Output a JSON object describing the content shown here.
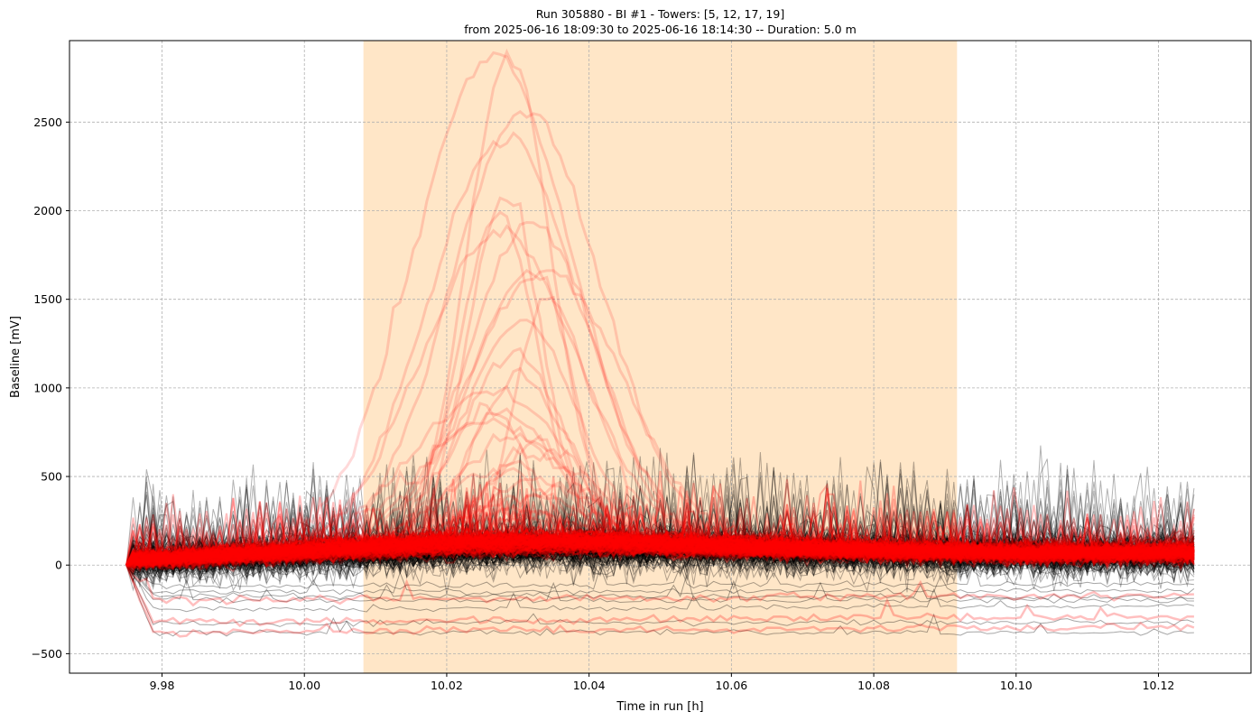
{
  "chart_data": {
    "type": "line",
    "title_line1": "Run 305880  -  BI #1  -  Towers: [5, 12, 17, 19]",
    "title_line2": "from  2025-06-16 18:09:30  to  2025-06-16 18:14:30 -- Duration: 5.0 m",
    "xlabel": "Time in run [h]",
    "ylabel": "Baseline [mV]",
    "xlim": [
      9.967,
      10.133
    ],
    "ylim": [
      -610,
      2960
    ],
    "x_ticks": [
      9.98,
      10.0,
      10.02,
      10.04,
      10.06,
      10.08,
      10.1,
      10.12
    ],
    "x_tick_labels": [
      "9.98",
      "10.00",
      "10.02",
      "10.04",
      "10.06",
      "10.08",
      "10.10",
      "10.12"
    ],
    "y_ticks": [
      -500,
      0,
      500,
      1000,
      1500,
      2000,
      2500
    ],
    "y_tick_labels": [
      "−500",
      "0",
      "500",
      "1000",
      "1500",
      "2000",
      "2500"
    ],
    "grid": true,
    "highlight_span": {
      "x_start": 10.0083,
      "x_end": 10.0917,
      "color": "#ffe6c7"
    },
    "x_start": 9.975,
    "x_end": 10.125,
    "series_groups": [
      {
        "color": "#000000",
        "opacity": 0.3,
        "approx_count": 170,
        "typical_baseline_start": 0,
        "typical_baseline_end": 60,
        "noise_spikes_up_to": 840,
        "outlier_offsets": [
          -380,
          -330,
          -250,
          -200,
          -170,
          -150,
          -120
        ]
      },
      {
        "color": "#ff0000",
        "opacity": 0.15,
        "approx_count": 120,
        "typical_baseline_start": 0,
        "typical_baseline_end": 70,
        "peak_time_range": [
          10.026,
          10.034
        ],
        "peak_values": [
          2800,
          2800,
          2480,
          2330,
          2000,
          1900,
          1850,
          1800,
          1580,
          1560,
          1420,
          1300,
          1100,
          980,
          900,
          800,
          780,
          720,
          650,
          600,
          550,
          500,
          450,
          400,
          350,
          300,
          260,
          220,
          200,
          180
        ],
        "outlier_offsets": [
          -380,
          -320,
          -200
        ]
      }
    ]
  }
}
